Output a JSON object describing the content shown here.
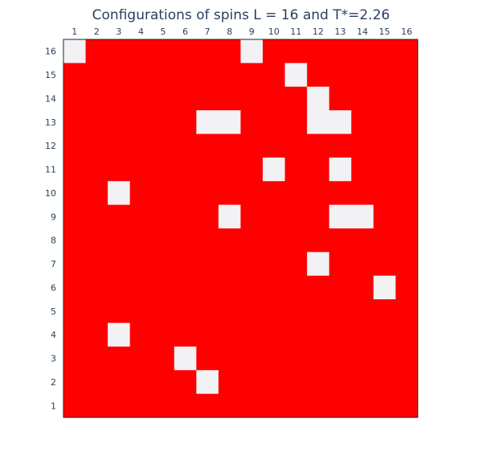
{
  "chart_data": {
    "type": "heatmap",
    "title": "Configurations of spins L = 16 and T*=2.26",
    "xlabel": "",
    "ylabel": "",
    "x_ticks": [
      1,
      2,
      3,
      4,
      5,
      6,
      7,
      8,
      9,
      10,
      11,
      12,
      13,
      14,
      15,
      16
    ],
    "y_ticks": [
      1,
      2,
      3,
      4,
      5,
      6,
      7,
      8,
      9,
      10,
      11,
      12,
      13,
      14,
      15,
      16
    ],
    "x_axis_position": "top",
    "colors": {
      "spin_up": "#ff0000",
      "spin_down": "#f2f2f5",
      "frame": "#222222",
      "text": "#2a3f5f"
    },
    "legend": "none",
    "z_rows_top_to_bottom": [
      [
        0,
        1,
        1,
        1,
        1,
        1,
        1,
        1,
        0,
        1,
        1,
        1,
        1,
        1,
        1,
        1
      ],
      [
        1,
        1,
        1,
        1,
        1,
        1,
        1,
        1,
        1,
        1,
        0,
        1,
        1,
        1,
        1,
        1
      ],
      [
        1,
        1,
        1,
        1,
        1,
        1,
        1,
        1,
        1,
        1,
        1,
        0,
        1,
        1,
        1,
        1
      ],
      [
        1,
        1,
        1,
        1,
        1,
        1,
        0,
        0,
        1,
        1,
        1,
        0,
        0,
        1,
        1,
        1
      ],
      [
        1,
        1,
        1,
        1,
        1,
        1,
        1,
        1,
        1,
        1,
        1,
        1,
        1,
        1,
        1,
        1
      ],
      [
        1,
        1,
        1,
        1,
        1,
        1,
        1,
        1,
        1,
        0,
        1,
        1,
        0,
        1,
        1,
        1
      ],
      [
        1,
        1,
        0,
        1,
        1,
        1,
        1,
        1,
        1,
        1,
        1,
        1,
        1,
        1,
        1,
        1
      ],
      [
        1,
        1,
        1,
        1,
        1,
        1,
        1,
        0,
        1,
        1,
        1,
        1,
        0,
        0,
        1,
        1
      ],
      [
        1,
        1,
        1,
        1,
        1,
        1,
        1,
        1,
        1,
        1,
        1,
        1,
        1,
        1,
        1,
        1
      ],
      [
        1,
        1,
        1,
        1,
        1,
        1,
        1,
        1,
        1,
        1,
        1,
        0,
        1,
        1,
        1,
        1
      ],
      [
        1,
        1,
        1,
        1,
        1,
        1,
        1,
        1,
        1,
        1,
        1,
        1,
        1,
        1,
        0,
        1
      ],
      [
        1,
        1,
        1,
        1,
        1,
        1,
        1,
        1,
        1,
        1,
        1,
        1,
        1,
        1,
        1,
        1
      ],
      [
        1,
        1,
        0,
        1,
        1,
        1,
        1,
        1,
        1,
        1,
        1,
        1,
        1,
        1,
        1,
        1
      ],
      [
        1,
        1,
        1,
        1,
        1,
        0,
        1,
        1,
        1,
        1,
        1,
        1,
        1,
        1,
        1,
        1
      ],
      [
        1,
        1,
        1,
        1,
        1,
        1,
        0,
        1,
        1,
        1,
        1,
        1,
        1,
        1,
        1,
        1
      ],
      [
        1,
        1,
        1,
        1,
        1,
        1,
        1,
        1,
        1,
        1,
        1,
        1,
        1,
        1,
        1,
        1
      ]
    ]
  }
}
